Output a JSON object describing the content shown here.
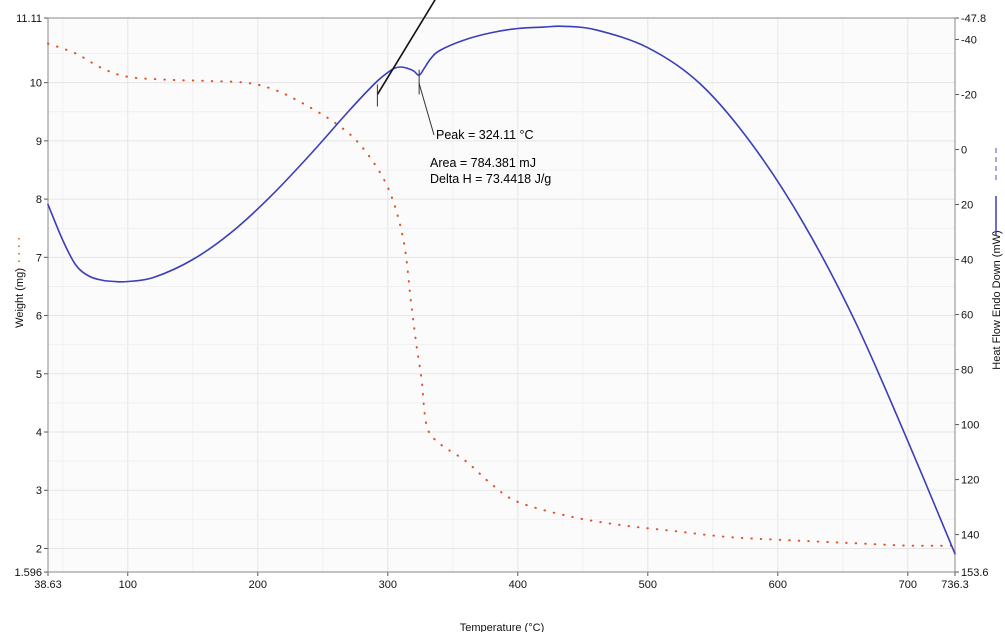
{
  "chart_data": {
    "type": "line",
    "title": "",
    "xlabel": "Temperature (°C)",
    "ylabel_left": "Weight (mg)",
    "ylabel_right": "Heat Flow Endo Down (mW)",
    "xlim": [
      38.63,
      736.3
    ],
    "ylim_left": [
      1.596,
      11.11
    ],
    "ylim_right": [
      -47.8,
      153.6
    ],
    "right_axis_inverted": true,
    "x_ticks": [
      "38.63",
      "100",
      "200",
      "300",
      "400",
      "500",
      "600",
      "700",
      "736.3"
    ],
    "x_tick_values": [
      38.63,
      100,
      200,
      300,
      400,
      500,
      600,
      700,
      736.3
    ],
    "left_ticks": [
      "1.596",
      "2",
      "3",
      "4",
      "5",
      "6",
      "7",
      "8",
      "9",
      "10",
      "11.11"
    ],
    "left_tick_values": [
      1.596,
      2,
      3,
      4,
      5,
      6,
      7,
      8,
      9,
      10,
      11.11
    ],
    "right_ticks": [
      "-47.8",
      "-40",
      "-20",
      "0",
      "20",
      "40",
      "60",
      "80",
      "100",
      "120",
      "140",
      "153.6"
    ],
    "right_tick_values": [
      -47.8,
      -40,
      -20,
      0,
      20,
      40,
      60,
      80,
      100,
      120,
      140,
      153.6
    ],
    "grid": true,
    "series": [
      {
        "axis": "left",
        "color": "#e0502a",
        "style": "dotted",
        "x": [
          38.63,
          60,
          80,
          100,
          130,
          160,
          190,
          210,
          230,
          260,
          280,
          300,
          312,
          318,
          322,
          326,
          330,
          340,
          360,
          380,
          400,
          440,
          480,
          520,
          560,
          600,
          650,
          700,
          736.3
        ],
        "y": [
          10.67,
          10.5,
          10.25,
          10.1,
          10.05,
          10.03,
          10.0,
          9.9,
          9.7,
          9.3,
          8.9,
          8.2,
          7.3,
          6.2,
          5.5,
          4.9,
          4.1,
          3.8,
          3.5,
          3.1,
          2.8,
          2.55,
          2.4,
          2.3,
          2.2,
          2.15,
          2.1,
          2.05,
          2.05
        ]
      },
      {
        "axis": "right",
        "color": "#3a3eb8",
        "style": "solid",
        "x": [
          38.63,
          50,
          60,
          70,
          80,
          90,
          100,
          120,
          150,
          180,
          210,
          240,
          270,
          290,
          300,
          305,
          310,
          315,
          320,
          324.11,
          328,
          333,
          340,
          360,
          380,
          400,
          420,
          435,
          460,
          500,
          540,
          580,
          620,
          660,
          700,
          736.3
        ],
        "y": [
          20,
          33,
          42,
          46,
          47.5,
          48,
          48,
          46.5,
          40,
          30,
          17,
          2,
          -14,
          -24,
          -28,
          -29.5,
          -30,
          -29.5,
          -28.5,
          -27,
          -29.5,
          -33,
          -36,
          -40,
          -42.5,
          -44,
          -44.5,
          -44.8,
          -43.5,
          -37,
          -24,
          -2,
          27,
          63,
          106,
          147
        ]
      }
    ],
    "baseline": {
      "x": [
        292,
        341
      ],
      "y_right": [
        -20,
        -58
      ]
    },
    "annotations": {
      "peak": "Peak = 324.11 °C",
      "area": "Area = 784.381 mJ",
      "delta_h": "Delta H = 73.4418 J/g"
    }
  }
}
